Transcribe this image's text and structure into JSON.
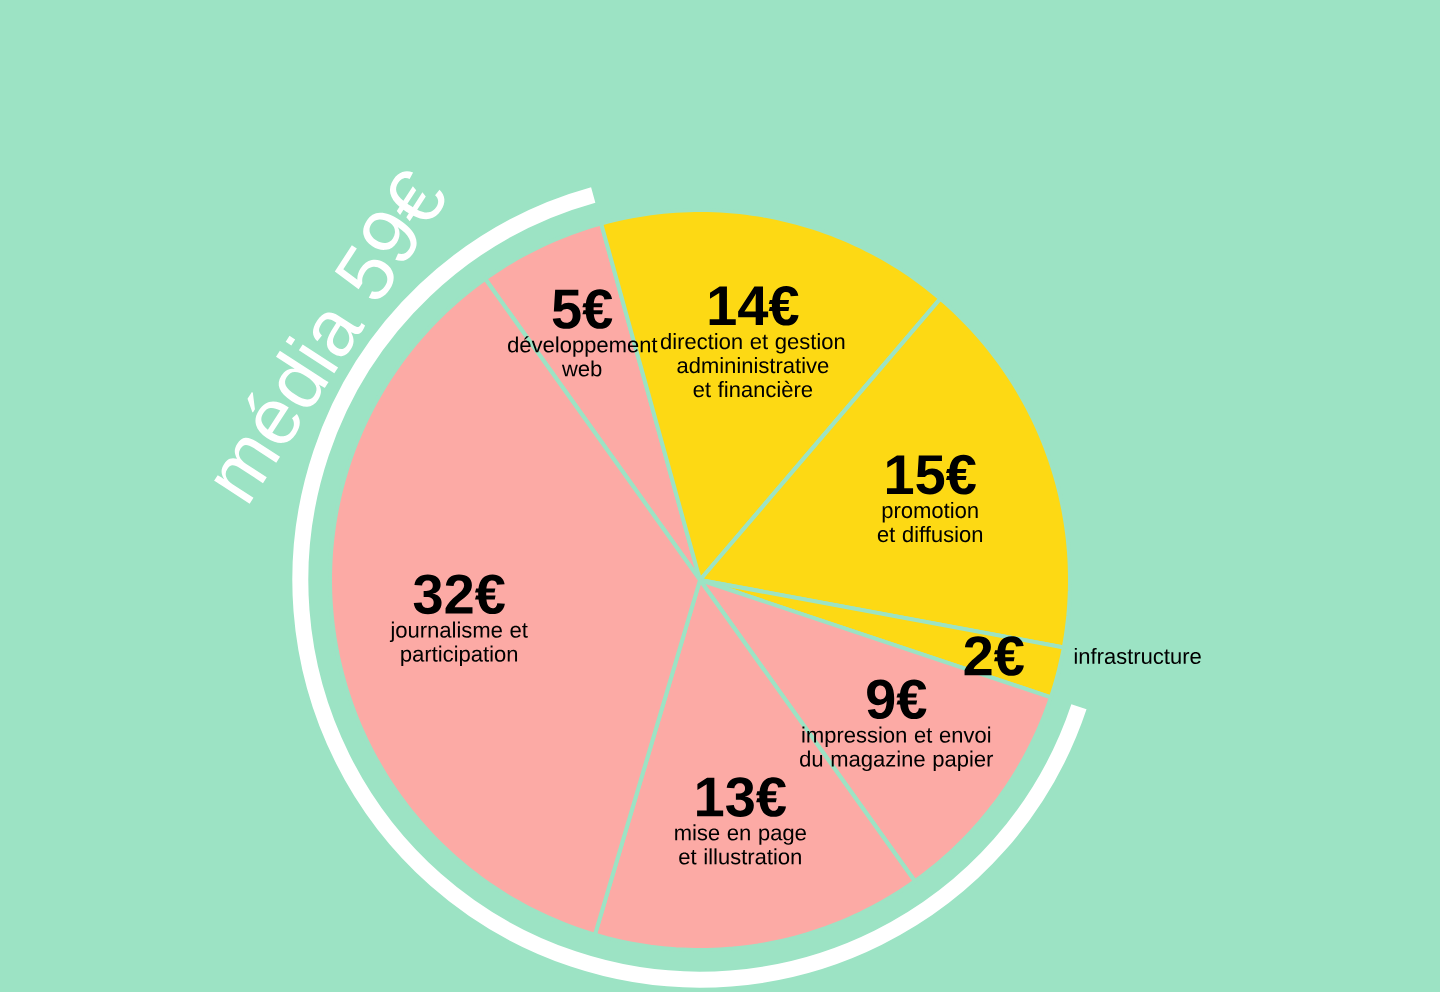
{
  "chart_data": {
    "type": "pie",
    "categories": [
      "développement web",
      "direction et gestion admininistrative et financière",
      "promotion et diffusion",
      "infrastructure",
      "impression et envoi du magazine papier",
      "mise en page et illustration",
      "journalisme et participation"
    ],
    "values": [
      5,
      14,
      15,
      2,
      9,
      13,
      32
    ],
    "value_labels": [
      "5€",
      "14€",
      "15€",
      "2€",
      "9€",
      "13€",
      "32€"
    ],
    "colors": [
      "#fcaaa5",
      "#fdd914",
      "#fdd914",
      "#fdd914",
      "#fcaaa5",
      "#fcaaa5",
      "#fcaaa5"
    ],
    "annotations": [
      "média 59€"
    ]
  }
}
